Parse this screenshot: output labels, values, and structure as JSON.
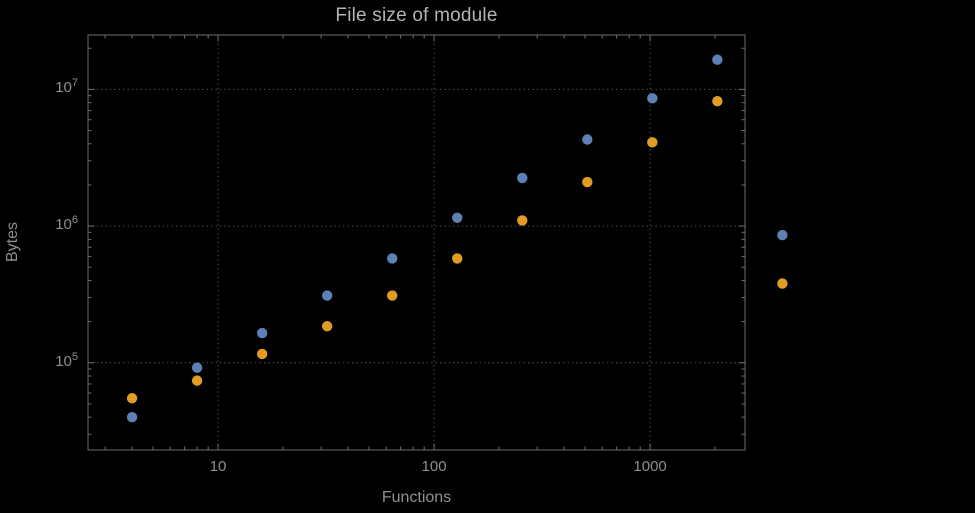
{
  "page": {
    "background": "#000000"
  },
  "chart_data": {
    "type": "scatter",
    "title": "File size of module",
    "xlabel": "Functions",
    "ylabel": "Bytes",
    "x_scale": "log",
    "y_scale": "log",
    "xlim": [
      2.5,
      2750
    ],
    "ylim": [
      23000,
      25000000
    ],
    "grid": "dotted",
    "legend": "none",
    "x_ticks": [
      {
        "value": 10,
        "label": "10"
      },
      {
        "value": 100,
        "label": "100"
      },
      {
        "value": 1000,
        "label": "1000"
      }
    ],
    "y_ticks": [
      {
        "value": 100000,
        "base": "10",
        "exp": "5"
      },
      {
        "value": 1000000,
        "base": "10",
        "exp": "6"
      },
      {
        "value": 10000000,
        "base": "10",
        "exp": "7"
      }
    ],
    "x": [
      4,
      8,
      16,
      32,
      64,
      128,
      256,
      512,
      1024,
      2048,
      4096
    ],
    "series": [
      {
        "name": "series-1",
        "color": "#5E81B5",
        "values": [
          40000,
          92000,
          165000,
          310000,
          580000,
          1150000,
          2250000,
          4300000,
          8600000,
          16500000,
          860000
        ]
      },
      {
        "name": "series-2",
        "color": "#E19C24",
        "values": [
          55000,
          74000,
          116000,
          185000,
          310000,
          580000,
          1100000,
          2100000,
          4100000,
          8200000,
          380000
        ]
      }
    ],
    "styles": {
      "frame_color": "#6e6e6e",
      "grid_color": "#5c5c5c",
      "title_color": "#b3b3b3",
      "label_color": "#8f8f8f",
      "tick_label_color": "#8f8f8f",
      "point_radius": 5.2
    }
  }
}
